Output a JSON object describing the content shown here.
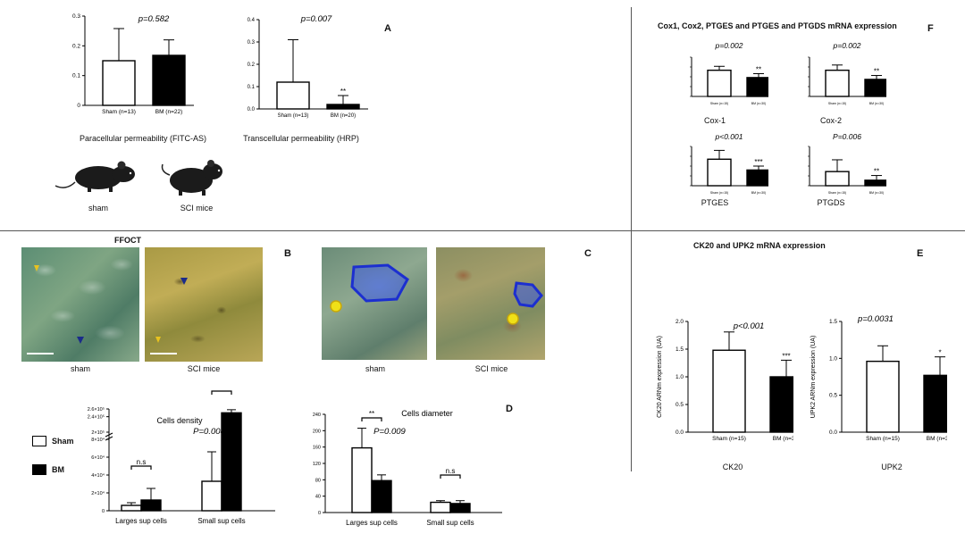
{
  "panels": {
    "A": {
      "letter": "A",
      "mouse_captions": [
        "sham",
        "SCI mice"
      ],
      "charts": [
        {
          "caption": "Paracellular permeability (FITC-AS)",
          "pvalue": "p=0.582"
        },
        {
          "caption": "Transcellular permeability (HRP)",
          "pvalue": "p=0.007"
        }
      ]
    },
    "B": {
      "letter": "B",
      "title": "FFOCT",
      "captions": [
        "sham",
        "SCI mice"
      ]
    },
    "C": {
      "letter": "C",
      "captions": [
        "sham",
        "SCI mice"
      ]
    },
    "D": {
      "letter": "D"
    },
    "E": {
      "letter": "E",
      "title": "CK20 and UPK2 mRNA expression",
      "captions": [
        "CK20",
        "UPK2"
      ]
    },
    "F": {
      "letter": "F",
      "title": "Cox1, Cox2, PTGES and PTGES and PTGDS mRNA expression",
      "captions": [
        "Cox-1",
        "Cox-2",
        "PTGES",
        "PTGDS"
      ]
    }
  },
  "legend": {
    "items": [
      {
        "label": "Sham",
        "color": "#ffffff"
      },
      {
        "label": "BM",
        "color": "#000000"
      }
    ]
  },
  "chart_data": [
    {
      "id": "A1",
      "type": "bar",
      "categories": [
        "Sham (n=13)",
        "BM (n=22)"
      ],
      "values": [
        0.15,
        0.168
      ],
      "errors": [
        0.108,
        0.052
      ],
      "ylim": [
        0,
        0.3
      ],
      "yticks": [
        "0",
        "0.1",
        "0.2",
        "0.3"
      ],
      "colors": [
        "#ffffff",
        "#000000"
      ],
      "annotation": "p=0.582"
    },
    {
      "id": "A2",
      "type": "bar",
      "categories": [
        "Sham (n=13)",
        "BM (n=20)"
      ],
      "values": [
        0.12,
        0.02
      ],
      "errors": [
        0.19,
        0.04
      ],
      "ylim": [
        0,
        0.4
      ],
      "yticks": [
        "0.0",
        "0.1",
        "0.2",
        "0.3",
        "0.4"
      ],
      "colors": [
        "#ffffff",
        "#000000"
      ],
      "annotation": "p=0.007",
      "stars": [
        "",
        "**"
      ]
    },
    {
      "id": "F1",
      "type": "bar",
      "categories": [
        "Sham (n=15)",
        "BM (n=30)"
      ],
      "values": [
        1.0,
        0.72
      ],
      "errors": [
        0.15,
        0.15
      ],
      "ylim": [
        0,
        1.5
      ],
      "colors": [
        "#ffffff",
        "#000000"
      ],
      "annotation": "p=0.002",
      "stars": [
        "",
        "**"
      ]
    },
    {
      "id": "F2",
      "type": "bar",
      "categories": [
        "Sham (n=15)",
        "BM (n=30)"
      ],
      "values": [
        0.2,
        0.13
      ],
      "errors": [
        0.04,
        0.03
      ],
      "ylim": [
        0,
        0.3
      ],
      "colors": [
        "#ffffff",
        "#000000"
      ],
      "annotation": "p=0.002",
      "stars": [
        "",
        "**"
      ]
    },
    {
      "id": "F3",
      "type": "bar",
      "categories": [
        "Sham (n=15)",
        "BM (n=30)"
      ],
      "values": [
        1.35,
        0.8
      ],
      "errors": [
        0.45,
        0.2
      ],
      "ylim": [
        0,
        2.0
      ],
      "colors": [
        "#ffffff",
        "#000000"
      ],
      "annotation": "p<0.001",
      "stars": [
        "",
        "***"
      ]
    },
    {
      "id": "F4",
      "type": "bar",
      "categories": [
        "Sham (n=15)",
        "BM (n=30)"
      ],
      "values": [
        0.9,
        0.35
      ],
      "errors": [
        0.75,
        0.3
      ],
      "ylim": [
        0,
        2.5
      ],
      "colors": [
        "#ffffff",
        "#000000"
      ],
      "annotation": "P=0.006",
      "stars": [
        "",
        "**"
      ]
    },
    {
      "id": "E1",
      "type": "bar",
      "categories": [
        "Sham (n=15)",
        "BM (n=30)"
      ],
      "values": [
        1.48,
        1.0
      ],
      "errors": [
        0.33,
        0.3
      ],
      "ylim": [
        0,
        2.0
      ],
      "yticks": [
        "0.0",
        "0.5",
        "1.0",
        "1.5",
        "2.0"
      ],
      "ylabel": "CK20 ARNm expression (UA)",
      "colors": [
        "#ffffff",
        "#000000"
      ],
      "annotation": "p<0.001",
      "stars": [
        "",
        "***"
      ]
    },
    {
      "id": "E2",
      "type": "bar",
      "categories": [
        "Sham (n=15)",
        "BM (n=30)"
      ],
      "values": [
        0.96,
        0.77
      ],
      "errors": [
        0.21,
        0.25
      ],
      "ylim": [
        0,
        1.5
      ],
      "yticks": [
        "0.0",
        "0.5",
        "1.0",
        "1.5"
      ],
      "ylabel": "UPK2 ARNm expression (UA)",
      "colors": [
        "#ffffff",
        "#000000"
      ],
      "annotation": "p=0.0031",
      "stars": [
        "",
        "*"
      ]
    },
    {
      "id": "B2",
      "type": "bar",
      "title": "Cells density",
      "categories": [
        "Larges sup cells",
        "Small sup cells"
      ],
      "series": [
        {
          "name": "Sham",
          "values": [
            6000,
            33000
          ],
          "errors": [
            3000,
            33000
          ]
        },
        {
          "name": "BM",
          "values": [
            12000,
            250000
          ],
          "errors": [
            13000,
            8000
          ]
        }
      ],
      "yticks_lower": [
        "0",
        "2×10⁴",
        "4×10⁴",
        "6×10⁴",
        "8×10⁴"
      ],
      "yticks_upper": [
        "2×10⁵",
        "2.4×10⁵",
        "2.6×10⁵"
      ],
      "brackets": [
        "n.s",
        "**"
      ],
      "annotation": "P=0.004"
    },
    {
      "id": "D",
      "type": "bar",
      "title": "Cells diameter",
      "categories": [
        "Larges sup cells",
        "Small sup cells"
      ],
      "series": [
        {
          "name": "Sham",
          "values": [
            158,
            25
          ],
          "errors": [
            48,
            4
          ]
        },
        {
          "name": "BM",
          "values": [
            78,
            22
          ],
          "errors": [
            14,
            7
          ]
        }
      ],
      "ylim": [
        0,
        240
      ],
      "yticks": [
        "0",
        "40",
        "80",
        "120",
        "160",
        "200",
        "240"
      ],
      "brackets": [
        "**",
        "n.s"
      ],
      "annotation": "P=0.009"
    }
  ]
}
